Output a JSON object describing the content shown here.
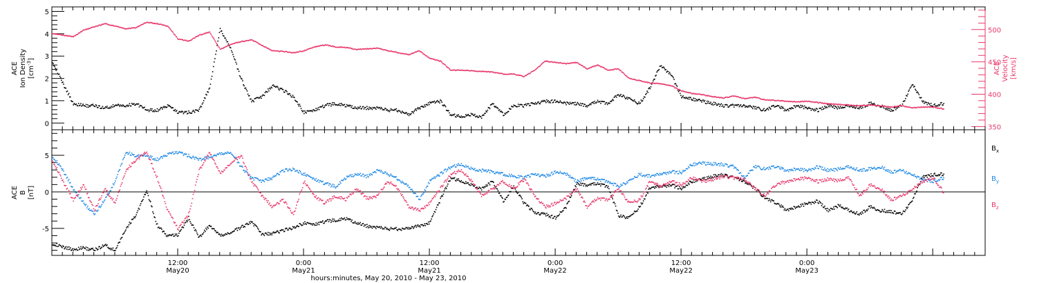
{
  "colors": {
    "black": "#000000",
    "pink": "#e8376a",
    "blue": "#1e88e5",
    "background": "#ffffff"
  },
  "chart_data": [
    {
      "type": "scatter",
      "panel": "top",
      "ylabel_left": [
        "ACE",
        "Ion Density",
        "[cm-3]"
      ],
      "ylabel_right": [
        "ACE",
        "Velocity",
        "[km/s]"
      ],
      "ylim_left": [
        -0.3,
        5.2
      ],
      "yticks_left": [
        0,
        1,
        2,
        3,
        4,
        5
      ],
      "ylim_right": [
        345,
        535
      ],
      "yticks_right": [
        350,
        400,
        450,
        500
      ],
      "x_unit": "hours since May20 00:00",
      "xlim": [
        0,
        89
      ],
      "series": [
        {
          "name_hidden": "density",
          "color": "#000000",
          "axis": "left",
          "x": [
            0,
            1,
            2,
            3,
            4,
            5,
            6,
            7,
            8,
            9,
            10,
            11,
            12,
            13,
            14,
            15,
            16,
            17,
            18,
            19,
            20,
            21,
            22,
            23,
            24,
            25,
            26,
            27,
            28,
            29,
            30,
            31,
            32,
            33,
            34,
            35,
            36,
            37,
            38,
            39,
            40,
            41,
            42,
            43,
            44,
            45,
            46,
            47,
            48,
            49,
            50,
            51,
            52,
            53,
            54,
            55,
            56,
            57,
            58,
            59,
            60,
            61,
            62,
            63,
            64,
            65,
            66,
            67,
            68,
            69,
            70,
            71,
            72,
            73,
            74,
            75,
            76,
            77,
            78,
            79,
            80,
            81,
            82,
            83,
            84,
            85
          ],
          "y": [
            2.8,
            1.8,
            0.9,
            0.8,
            0.8,
            0.7,
            0.8,
            0.8,
            0.9,
            0.6,
            0.6,
            0.8,
            0.5,
            0.5,
            0.6,
            1.6,
            4.2,
            3.4,
            2.0,
            1.0,
            1.2,
            1.7,
            1.5,
            1.2,
            0.5,
            0.6,
            0.8,
            0.9,
            0.8,
            0.7,
            0.7,
            0.7,
            0.6,
            0.6,
            0.4,
            0.7,
            0.9,
            1.0,
            0.4,
            0.3,
            0.4,
            0.3,
            0.9,
            0.4,
            0.8,
            0.8,
            0.9,
            1.0,
            1.0,
            0.9,
            0.9,
            0.8,
            1.0,
            0.9,
            1.3,
            1.1,
            0.9,
            1.6,
            2.6,
            2.2,
            1.2,
            1.1,
            1.0,
            0.9,
            0.8,
            0.8,
            0.8,
            0.7,
            0.6,
            0.8,
            0.6,
            0.8,
            0.7,
            0.6,
            0.8,
            0.7,
            0.8,
            0.7,
            0.9,
            0.8,
            0.6,
            0.8,
            1.8,
            1.0,
            0.8,
            0.9
          ]
        },
        {
          "name_hidden": "velocity",
          "color": "#e8376a",
          "axis": "right",
          "x": [
            0,
            1,
            2,
            3,
            4,
            5,
            6,
            7,
            8,
            9,
            10,
            11,
            12,
            13,
            14,
            15,
            16,
            17,
            18,
            19,
            20,
            21,
            22,
            23,
            24,
            25,
            26,
            27,
            28,
            29,
            30,
            31,
            32,
            33,
            34,
            35,
            36,
            37,
            38,
            39,
            40,
            41,
            42,
            43,
            44,
            45,
            46,
            47,
            48,
            49,
            50,
            51,
            52,
            53,
            54,
            55,
            56,
            57,
            58,
            59,
            60,
            61,
            62,
            63,
            64,
            65,
            66,
            67,
            68,
            69,
            70,
            71,
            72,
            73,
            74,
            75,
            76,
            77,
            78,
            79,
            80,
            81,
            82,
            83,
            84,
            85
          ],
          "y": [
            495,
            492,
            490,
            500,
            505,
            510,
            506,
            502,
            504,
            512,
            510,
            506,
            486,
            483,
            492,
            497,
            470,
            478,
            482,
            485,
            476,
            468,
            467,
            465,
            468,
            474,
            477,
            474,
            473,
            470,
            471,
            472,
            468,
            465,
            462,
            468,
            456,
            452,
            438,
            438,
            437,
            436,
            435,
            432,
            432,
            428,
            438,
            452,
            450,
            448,
            450,
            440,
            446,
            438,
            440,
            425,
            422,
            418,
            417,
            414,
            406,
            402,
            400,
            397,
            395,
            398,
            394,
            396,
            392,
            391,
            390,
            389,
            390,
            388,
            386,
            385,
            384,
            383,
            384,
            383,
            381,
            383,
            380,
            381,
            381,
            378
          ]
        }
      ]
    },
    {
      "type": "scatter",
      "panel": "bottom",
      "ylabel": [
        "ACE",
        "B",
        "[nT]"
      ],
      "ylim": [
        -8.7,
        8.5
      ],
      "yticks": [
        -5,
        0,
        5
      ],
      "x_unit": "hours since May20 00:00",
      "xlim": [
        0,
        89
      ],
      "series": [
        {
          "name": "Bx",
          "label_main": "B",
          "label_sub": "x",
          "color": "#000000",
          "x": [
            0,
            1,
            2,
            3,
            4,
            5,
            6,
            7,
            8,
            9,
            10,
            11,
            12,
            13,
            14,
            15,
            16,
            17,
            18,
            19,
            20,
            21,
            22,
            23,
            24,
            25,
            26,
            27,
            28,
            29,
            30,
            31,
            32,
            33,
            34,
            35,
            36,
            37,
            38,
            39,
            40,
            41,
            42,
            43,
            44,
            45,
            46,
            47,
            48,
            49,
            50,
            51,
            52,
            53,
            54,
            55,
            56,
            57,
            58,
            59,
            60,
            61,
            62,
            63,
            64,
            65,
            66,
            67,
            68,
            69,
            70,
            71,
            72,
            73,
            74,
            75,
            76,
            77,
            78,
            79,
            80,
            81,
            82,
            83,
            84,
            85
          ],
          "y": [
            -7.0,
            -7.5,
            -7.8,
            -7.6,
            -7.9,
            -7.2,
            -8.0,
            -5.0,
            -3.0,
            0.2,
            -4.5,
            -6.0,
            -5.8,
            -3.5,
            -6.2,
            -4.5,
            -6.0,
            -5.5,
            -4.8,
            -4.0,
            -5.8,
            -5.6,
            -5.2,
            -4.8,
            -4.2,
            -4.4,
            -4.0,
            -3.8,
            -3.6,
            -4.2,
            -4.6,
            -4.8,
            -5.0,
            -5.0,
            -4.9,
            -4.6,
            -4.2,
            -1.0,
            2.0,
            1.5,
            1.0,
            0.5,
            1.5,
            -1.2,
            0.8,
            -1.5,
            -2.8,
            -3.0,
            -3.5,
            -2.0,
            1.2,
            1.0,
            1.2,
            0.8,
            -3.2,
            -3.5,
            -2.0,
            0.6,
            0.8,
            1.0,
            0.5,
            1.5,
            1.8,
            2.2,
            2.4,
            2.0,
            1.5,
            0.5,
            -0.8,
            -1.5,
            -2.4,
            -2.0,
            -1.5,
            -1.2,
            -2.5,
            -1.8,
            -2.5,
            -3.0,
            -2.0,
            -2.5,
            -2.6,
            -3.0,
            -1.0,
            2.2,
            2.4,
            2.5
          ]
        },
        {
          "name": "By",
          "label_main": "B",
          "label_sub": "y",
          "color": "#1e88e5",
          "x": [
            0,
            1,
            2,
            3,
            4,
            5,
            6,
            7,
            8,
            9,
            10,
            11,
            12,
            13,
            14,
            15,
            16,
            17,
            18,
            19,
            20,
            21,
            22,
            23,
            24,
            25,
            26,
            27,
            28,
            29,
            30,
            31,
            32,
            33,
            34,
            35,
            36,
            37,
            38,
            39,
            40,
            41,
            42,
            43,
            44,
            45,
            46,
            47,
            48,
            49,
            50,
            51,
            52,
            53,
            54,
            55,
            56,
            57,
            58,
            59,
            60,
            61,
            62,
            63,
            64,
            65,
            66,
            67,
            68,
            69,
            70,
            71,
            72,
            73,
            74,
            75,
            76,
            77,
            78,
            79,
            80,
            81,
            82,
            83,
            84,
            85
          ],
          "y": [
            5.0,
            3.0,
            0.5,
            -1.5,
            -3.0,
            -1.0,
            1.5,
            5.5,
            5.0,
            5.0,
            4.5,
            5.2,
            5.5,
            5.0,
            4.5,
            4.8,
            5.2,
            5.5,
            3.5,
            2.0,
            1.5,
            2.0,
            3.0,
            3.2,
            2.5,
            1.8,
            1.2,
            0.8,
            2.0,
            2.5,
            2.2,
            3.0,
            2.5,
            1.8,
            0.8,
            -1.0,
            1.5,
            2.5,
            3.5,
            3.8,
            3.2,
            3.0,
            2.8,
            2.5,
            2.2,
            2.0,
            2.5,
            2.2,
            2.8,
            2.5,
            1.5,
            2.0,
            1.8,
            1.5,
            0.8,
            1.5,
            2.5,
            2.2,
            2.5,
            2.8,
            2.7,
            3.8,
            4.0,
            3.9,
            3.8,
            3.5,
            2.0,
            3.5,
            3.2,
            3.5,
            3.0,
            3.2,
            3.0,
            3.5,
            3.0,
            3.2,
            3.5,
            3.0,
            3.2,
            3.5,
            2.8,
            3.0,
            2.5,
            1.8,
            1.5,
            2.0
          ]
        },
        {
          "name": "Bz",
          "label_main": "B",
          "label_sub": "z",
          "color": "#e8376a",
          "x": [
            0,
            1,
            2,
            3,
            4,
            5,
            6,
            7,
            8,
            9,
            10,
            11,
            12,
            13,
            14,
            15,
            16,
            17,
            18,
            19,
            20,
            21,
            22,
            23,
            24,
            25,
            26,
            27,
            28,
            29,
            30,
            31,
            32,
            33,
            34,
            35,
            36,
            37,
            38,
            39,
            40,
            41,
            42,
            43,
            44,
            45,
            46,
            47,
            48,
            49,
            50,
            51,
            52,
            53,
            54,
            55,
            56,
            57,
            58,
            59,
            60,
            61,
            62,
            63,
            64,
            65,
            66,
            67,
            68,
            69,
            70,
            71,
            72,
            73,
            74,
            75,
            76,
            77,
            78,
            79,
            80,
            81,
            82,
            83,
            84,
            85
          ],
          "y": [
            4.5,
            1.5,
            -1.0,
            1.0,
            -2.5,
            0.5,
            -1.5,
            3.0,
            4.5,
            5.5,
            2.0,
            -2.5,
            -5.0,
            -3.0,
            3.0,
            5.5,
            2.5,
            4.0,
            5.0,
            1.5,
            -0.5,
            -2.0,
            -1.0,
            -3.0,
            1.5,
            -0.5,
            -1.5,
            -0.5,
            -1.0,
            0.5,
            -0.8,
            -0.5,
            1.5,
            0.5,
            -2.0,
            -2.5,
            -1.5,
            0.5,
            2.5,
            3.0,
            1.5,
            -0.5,
            0.5,
            1.5,
            0.5,
            1.8,
            -0.5,
            -2.0,
            -1.5,
            -0.8,
            0.5,
            -2.0,
            -0.8,
            -1.0,
            0.5,
            -1.5,
            -1.0,
            1.5,
            0.8,
            1.5,
            1.0,
            2.0,
            1.5,
            1.8,
            2.2,
            2.0,
            1.8,
            0.5,
            -0.5,
            1.0,
            1.5,
            1.8,
            2.0,
            1.5,
            1.8,
            1.6,
            2.0,
            -0.5,
            1.0,
            0.5,
            -1.0,
            -0.5,
            0.5,
            1.5,
            2.0,
            0.0
          ]
        }
      ]
    }
  ],
  "x_axis": {
    "ticks": [
      {
        "hour": 12,
        "line1": "12:00",
        "line2": "May20"
      },
      {
        "hour": 24,
        "line1": "0:00",
        "line2": "May21"
      },
      {
        "hour": 36,
        "line1": "12:00",
        "line2": "May21"
      },
      {
        "hour": 48,
        "line1": "0:00",
        "line2": "May22"
      },
      {
        "hour": 60,
        "line1": "12:00",
        "line2": "May22"
      },
      {
        "hour": 72,
        "line1": "0:00",
        "line2": "May23"
      }
    ],
    "label": "hours:minutes, May 20, 2010 - May 23, 2010"
  }
}
